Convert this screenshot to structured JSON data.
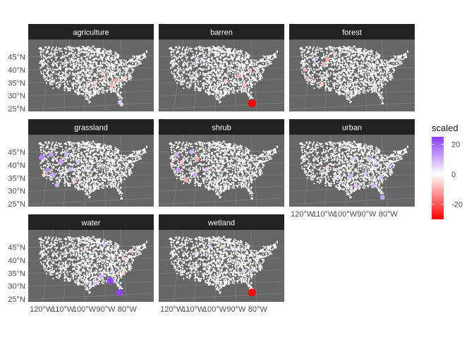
{
  "chart_data": {
    "type": "faceted-map",
    "facets": [
      {
        "name": "agriculture",
        "hot": [
          [
            -82,
            26,
            8
          ],
          [
            -86,
            33,
            -8
          ],
          [
            -84,
            35,
            -10
          ],
          [
            -90,
            36,
            -7
          ],
          [
            -95,
            34,
            -6
          ],
          [
            -79,
            36,
            -6
          ],
          [
            -100,
            42,
            4
          ],
          [
            -106,
            41,
            3
          ],
          [
            -110,
            40,
            3
          ],
          [
            -91,
            38,
            -5
          ],
          [
            -98,
            30,
            -4
          ],
          [
            -81,
            25,
            -6
          ]
        ]
      },
      {
        "name": "barren",
        "hot": [
          [
            -81,
            25.5,
            -30
          ],
          [
            -85,
            33,
            -8
          ],
          [
            -88,
            37,
            -10
          ],
          [
            -82,
            39,
            -7
          ],
          [
            -95,
            35,
            -5
          ],
          [
            -110,
            44,
            6
          ],
          [
            -115,
            40,
            4
          ],
          [
            -100,
            46,
            -4
          ],
          [
            -78,
            39,
            -4
          ]
        ]
      },
      {
        "name": "forest",
        "hot": [
          [
            -117,
            44,
            6
          ],
          [
            -122,
            40,
            -8
          ],
          [
            -112,
            42,
            -8
          ],
          [
            -110,
            44,
            -10
          ],
          [
            -106,
            46,
            -6
          ],
          [
            -120,
            36,
            -7
          ],
          [
            -113,
            34,
            -6
          ],
          [
            -92,
            38,
            -5
          ],
          [
            -85,
            32,
            -5
          ],
          [
            -90,
            46,
            -4
          ],
          [
            -78,
            41,
            -4
          ]
        ]
      },
      {
        "name": "grassland",
        "hot": [
          [
            -123,
            43,
            16
          ],
          [
            -118,
            44,
            12
          ],
          [
            -113,
            41,
            12
          ],
          [
            -110,
            44,
            10
          ],
          [
            -120,
            38,
            14
          ],
          [
            -117,
            36,
            12
          ],
          [
            -108,
            38,
            10
          ],
          [
            -104,
            41,
            8
          ],
          [
            -122,
            36,
            -6
          ],
          [
            -115,
            32,
            10
          ],
          [
            -106,
            33,
            -5
          ],
          [
            -100,
            38,
            6
          ]
        ]
      },
      {
        "name": "shrub",
        "hot": [
          [
            -121,
            44,
            10
          ],
          [
            -118,
            41,
            -8
          ],
          [
            -113,
            45,
            10
          ],
          [
            -110,
            42,
            -10
          ],
          [
            -120,
            38,
            12
          ],
          [
            -116,
            34,
            -10
          ],
          [
            -111,
            36,
            10
          ],
          [
            -123,
            40,
            -6
          ],
          [
            -105,
            38,
            8
          ],
          [
            -100,
            33,
            -5
          ],
          [
            -95,
            45,
            6
          ],
          [
            -85,
            34,
            -4
          ]
        ]
      },
      {
        "name": "urban",
        "hot": [
          [
            -81,
            26,
            12
          ],
          [
            -86,
            31,
            10
          ],
          [
            -95,
            31,
            8
          ],
          [
            -98,
            35,
            10
          ],
          [
            -88,
            42,
            8
          ],
          [
            -77,
            39,
            9
          ],
          [
            -84,
            40,
            6
          ],
          [
            -90,
            36,
            8
          ],
          [
            -106,
            35,
            6
          ],
          [
            -110,
            39,
            -5
          ],
          [
            -96,
            42,
            6
          ],
          [
            -82,
            34,
            8
          ]
        ]
      },
      {
        "name": "water",
        "hot": [
          [
            -82,
            26,
            24
          ],
          [
            -87,
            31,
            24
          ],
          [
            -92,
            33,
            10
          ],
          [
            -95,
            30,
            8
          ],
          [
            -86,
            35,
            6
          ],
          [
            -80,
            34,
            -6
          ],
          [
            -90,
            46,
            8
          ],
          [
            -100,
            44,
            -6
          ],
          [
            -76,
            43,
            -6
          ],
          [
            -100,
            38,
            4
          ],
          [
            -80,
            40,
            -5
          ],
          [
            -84,
            44,
            6
          ]
        ]
      },
      {
        "name": "wetland",
        "hot": [
          [
            -81,
            26,
            -30
          ],
          [
            -89,
            38,
            6
          ],
          [
            -96,
            45,
            -6
          ],
          [
            -90,
            44,
            6
          ],
          [
            -85,
            35,
            5
          ],
          [
            -78,
            41,
            5
          ],
          [
            -103,
            45,
            5
          ],
          [
            -110,
            42,
            4
          ],
          [
            -106,
            38,
            4
          ],
          [
            -99,
            32,
            -4
          ]
        ]
      }
    ],
    "y_ticks": [
      "45°N",
      "40°N",
      "35°N",
      "30°N",
      "25°N"
    ],
    "x_ticks": [
      "120°W",
      "110°W",
      "100°W",
      "90°W",
      "80°W"
    ],
    "legend": {
      "title": "scaled",
      "range": [
        -30,
        25
      ],
      "ticks": [
        {
          "value": 20,
          "label": "20"
        },
        {
          "value": 0,
          "label": "0"
        },
        {
          "value": -20,
          "label": "-20"
        }
      ],
      "colors": {
        "low": "#ff0000",
        "mid": "#ffffff",
        "high": "#8b3cff"
      }
    },
    "colors": {
      "panel": "#666666",
      "strip": "#222222",
      "point": "#ffffff"
    }
  }
}
